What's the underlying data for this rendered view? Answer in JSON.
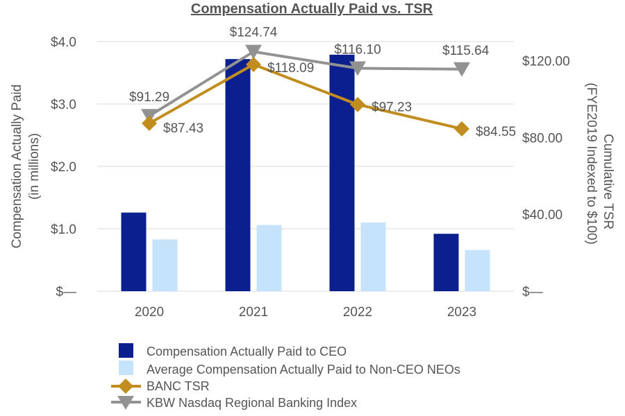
{
  "chart_data": {
    "type": "bar",
    "title": "Compensation Actually Paid vs. TSR",
    "categories": [
      "2020",
      "2021",
      "2022",
      "2023"
    ],
    "y_left": {
      "label_line1": "Compensation Actually Paid",
      "label_line2": "(in millions)",
      "ylim": [
        0,
        4.0
      ],
      "ticks": [
        0,
        1,
        2,
        3,
        4
      ],
      "tick_labels": [
        "$—",
        "$1.0",
        "$2.0",
        "$3.0",
        "$4.0"
      ]
    },
    "y_right": {
      "label_line1": "Cumulative TSR",
      "label_line2": "(FYE2019 Indexed to $100)",
      "ylim": [
        0,
        130
      ],
      "ticks": [
        0,
        40,
        80,
        120
      ],
      "tick_labels": [
        "$—",
        "$40.00",
        "$80.00",
        "$120.00"
      ]
    },
    "grid": true,
    "legend_position": "bottom",
    "bar_series": [
      {
        "name": "Compensation Actually Paid to CEO",
        "color": "#0b1f8f",
        "values": [
          1.26,
          3.72,
          3.79,
          0.92
        ]
      },
      {
        "name": "Average Compensation Actually Paid to Non-CEO NEOs",
        "color": "#c5e3fb",
        "values": [
          0.83,
          1.06,
          1.1,
          0.66
        ]
      }
    ],
    "line_series": [
      {
        "name": "BANC TSR",
        "color": "#c18d1e",
        "marker": "diamond",
        "values": [
          87.43,
          118.09,
          97.23,
          84.55
        ],
        "labels": [
          "$87.43",
          "$118.09",
          "$97.23",
          "$84.55"
        ]
      },
      {
        "name": "KBW Nasdaq Regional Banking Index",
        "color": "#929292",
        "marker": "triangle-down",
        "values": [
          91.29,
          124.74,
          116.1,
          115.64
        ],
        "labels": [
          "$91.29",
          "$124.74",
          "$116.10",
          "$115.64"
        ]
      }
    ]
  }
}
